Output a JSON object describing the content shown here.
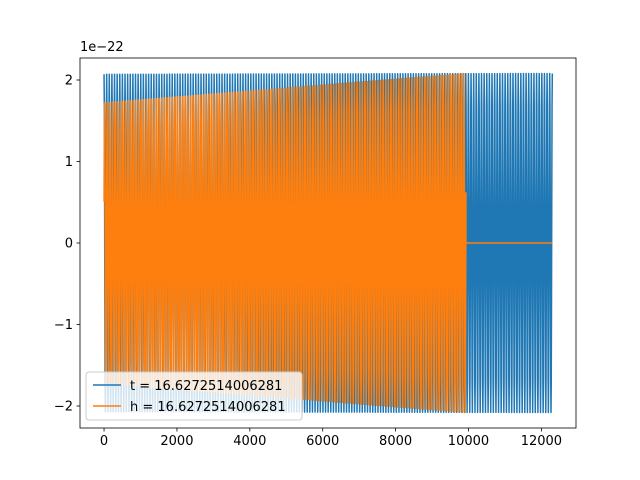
{
  "chart_data": {
    "type": "line",
    "title": "",
    "xlabel": "",
    "ylabel": "",
    "y_scale_label": "1e−22",
    "xlim": [
      -660,
      12950
    ],
    "ylim": [
      -2.27,
      2.27
    ],
    "x_ticks": [
      0,
      2000,
      4000,
      6000,
      8000,
      10000,
      12000
    ],
    "x_tick_labels": [
      "0",
      "2000",
      "4000",
      "6000",
      "8000",
      "10000",
      "12000"
    ],
    "y_ticks": [
      -2,
      -1,
      0,
      1,
      2
    ],
    "y_tick_labels": [
      "−2",
      "−1",
      "0",
      "1",
      "2"
    ],
    "grid": false,
    "legend_placement": "lower-left",
    "series": [
      {
        "name": "t = 16.6272514006281",
        "color": "#1f77b4",
        "x_start": 0,
        "x_end": 12300,
        "start_amplitude": 2.07,
        "end_amplitude": 2.08,
        "cycles": 171,
        "cycles_to_10000": 139,
        "visible_from": 10000
      },
      {
        "name": "h = 16.6272514006281",
        "color": "#ff7f0e",
        "x_start": 0,
        "x_end": 12300,
        "oscillation_end": 9930,
        "start_amplitude": 1.72,
        "end_amplitude": 2.08,
        "cycles": 139,
        "tail_value": 0
      }
    ]
  }
}
